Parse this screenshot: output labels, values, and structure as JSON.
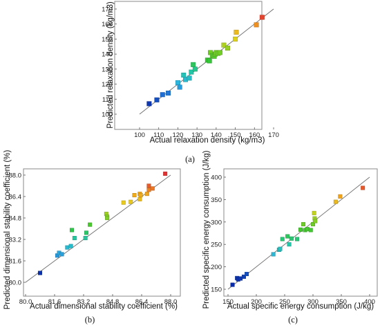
{
  "chart_data": [
    {
      "type": "scatter",
      "panel_label": "(a)",
      "xlabel": "Actual relaxation density (kg/m3)",
      "ylabel": "Predicted relaxation density (kg/m3)",
      "xlim": [
        100,
        170
      ],
      "ylim": [
        100,
        170
      ],
      "xticks": [
        "100",
        "110",
        "120",
        "130",
        "140",
        "150",
        "160",
        "170"
      ],
      "yticks": [
        "100",
        "110",
        "120",
        "130",
        "140",
        "150",
        "160",
        "170"
      ],
      "reference_line": "y = x",
      "grid": false,
      "color_scale": [
        "#0a2ca8",
        "#1f6fd6",
        "#2bb5e0",
        "#22c7a8",
        "#33c633",
        "#8ed022",
        "#e6d21e",
        "#f0a21e",
        "#e33232"
      ],
      "points": [
        [
          105,
          107
        ],
        [
          109,
          109.5
        ],
        [
          112,
          113
        ],
        [
          115,
          114
        ],
        [
          120,
          121
        ],
        [
          121,
          118
        ],
        [
          123,
          126
        ],
        [
          124,
          123
        ],
        [
          126,
          124
        ],
        [
          127,
          128
        ],
        [
          128,
          133
        ],
        [
          129,
          130
        ],
        [
          135.5,
          136
        ],
        [
          136.5,
          135.5
        ],
        [
          137,
          141
        ],
        [
          138,
          139
        ],
        [
          139,
          138.5
        ],
        [
          139.5,
          140
        ],
        [
          140,
          141
        ],
        [
          141,
          140.5
        ],
        [
          142,
          141
        ],
        [
          144,
          146
        ],
        [
          146,
          144
        ],
        [
          150,
          150
        ],
        [
          150.5,
          154.5
        ],
        [
          161,
          159.5
        ],
        [
          164,
          164.5
        ]
      ]
    },
    {
      "type": "scatter",
      "panel_label": "(b)",
      "xlabel": "Actual dimensional stability coefficient (%)",
      "ylabel": "Predicted dimensional stability coefficient (%)",
      "xlim": [
        80.0,
        88.0
      ],
      "ylim": [
        80.0,
        88.0
      ],
      "xticks": [
        "80.0",
        "81.6",
        "83.2",
        "84.8",
        "86.4",
        "88.0"
      ],
      "yticks": [
        "80.0",
        "81.6",
        "83.2",
        "84.8",
        "86.4",
        "88.0"
      ],
      "reference_line": "y = x",
      "grid": false,
      "color_scale": [
        "#0a2ca8",
        "#1f6fd6",
        "#2bb5e0",
        "#22c7a8",
        "#33c633",
        "#8ed022",
        "#e6d21e",
        "#f0a21e",
        "#e33232"
      ],
      "points": [
        [
          80.8,
          80.7
        ],
        [
          81.75,
          82.0
        ],
        [
          81.85,
          82.2
        ],
        [
          82.0,
          82.1
        ],
        [
          82.3,
          82.6
        ],
        [
          82.5,
          82.7
        ],
        [
          82.55,
          83.9
        ],
        [
          82.7,
          83.3
        ],
        [
          83.3,
          83.3
        ],
        [
          83.35,
          83.7
        ],
        [
          83.55,
          84.3
        ],
        [
          84.45,
          85.1
        ],
        [
          84.5,
          84.9
        ],
        [
          84.5,
          84.8
        ],
        [
          85.4,
          85.95
        ],
        [
          85.8,
          86.0
        ],
        [
          86.0,
          86.5
        ],
        [
          86.3,
          86.6
        ],
        [
          86.3,
          86.2
        ],
        [
          86.35,
          86.5
        ],
        [
          86.7,
          86.6
        ],
        [
          86.8,
          86.9
        ],
        [
          86.8,
          87.2
        ],
        [
          87.0,
          87.0
        ],
        [
          87.7,
          88.1
        ]
      ]
    },
    {
      "type": "scatter",
      "panel_label": "(c)",
      "xlabel": "Actual specific energy consumption  (J/kg)",
      "ylabel": "Predicted specific energy consumption  (J/kg)",
      "xlim": [
        150,
        400
      ],
      "ylim": [
        150,
        400
      ],
      "xticks": [
        "150",
        "200",
        "250",
        "300",
        "350",
        "400"
      ],
      "yticks": [
        "150",
        "200",
        "250",
        "300",
        "350",
        "400"
      ],
      "reference_line": "y = x",
      "grid": false,
      "color_scale": [
        "#0a2ca8",
        "#1f6fd6",
        "#2bb5e0",
        "#22c7a8",
        "#33c633",
        "#8ed022",
        "#e6d21e",
        "#f0a21e",
        "#e33232"
      ],
      "points": [
        [
          158,
          160
        ],
        [
          166,
          175
        ],
        [
          168,
          172
        ],
        [
          172,
          174
        ],
        [
          178,
          178
        ],
        [
          183,
          184
        ],
        [
          230,
          228
        ],
        [
          240,
          238
        ],
        [
          242,
          240
        ],
        [
          246,
          262
        ],
        [
          255,
          268
        ],
        [
          258,
          250
        ],
        [
          262,
          263
        ],
        [
          272,
          262
        ],
        [
          278,
          283
        ],
        [
          283,
          295
        ],
        [
          286,
          282
        ],
        [
          290,
          284
        ],
        [
          296,
          282
        ],
        [
          300,
          295
        ],
        [
          302,
          320
        ],
        [
          303,
          308
        ],
        [
          304,
          302
        ],
        [
          340,
          345
        ],
        [
          348,
          357
        ],
        [
          388,
          376
        ]
      ]
    }
  ]
}
